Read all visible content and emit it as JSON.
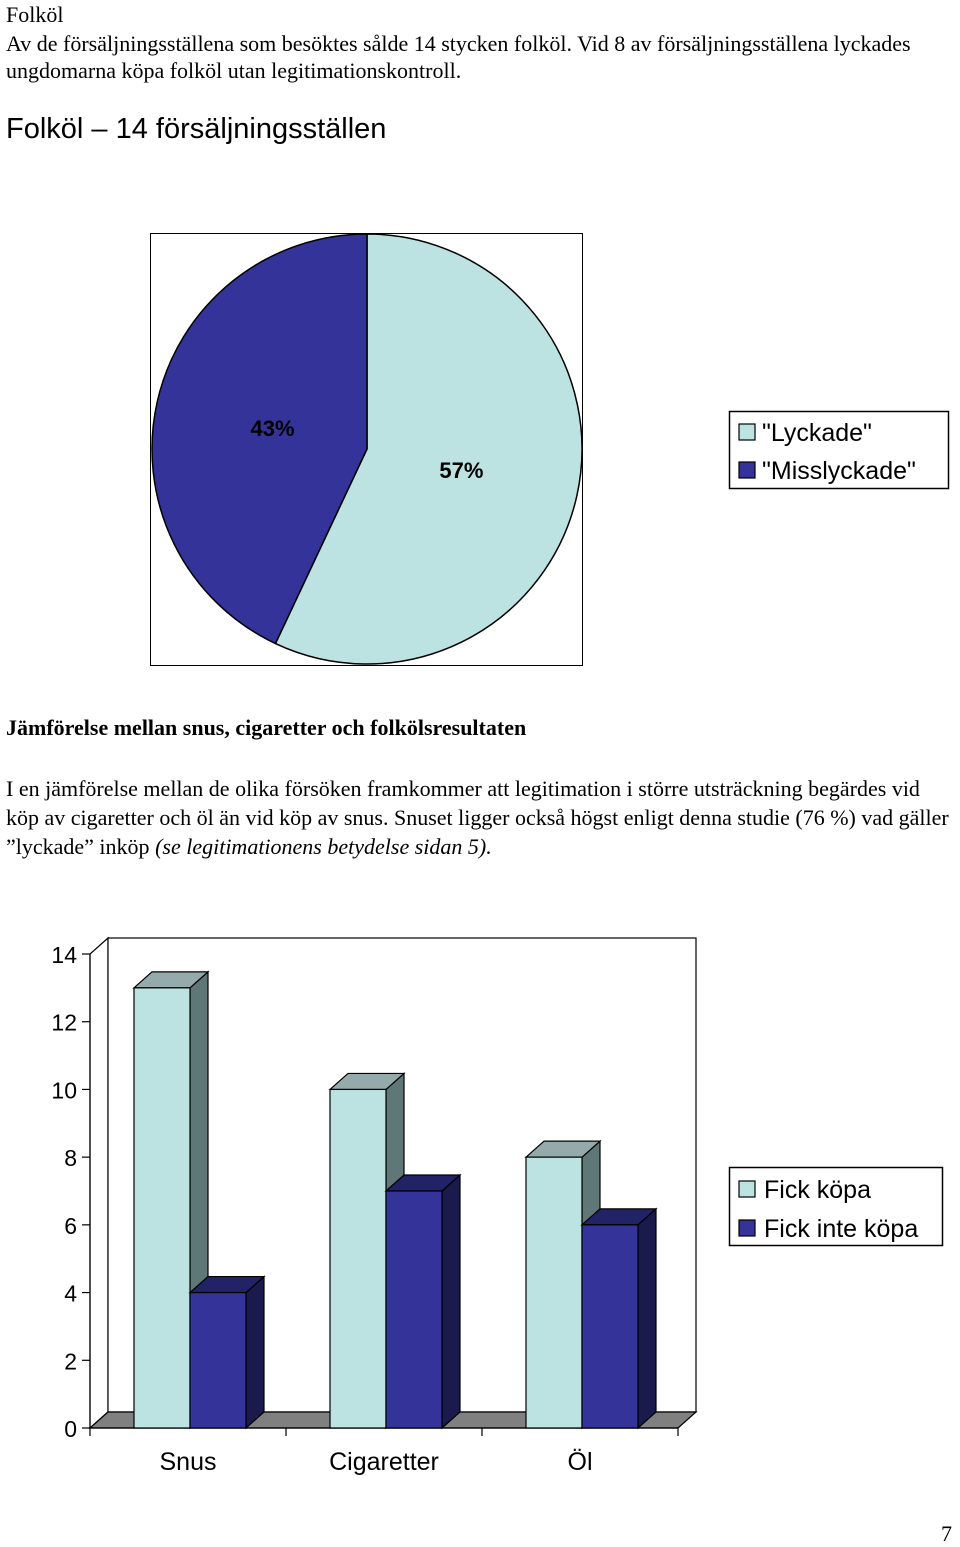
{
  "intro": {
    "heading": "Folköl",
    "text": "Av de försäljningsställena som besöktes sålde 14 stycken folköl. Vid 8 av försäljningsställena lyckades ungdomarna köpa folköl utan legitimationskontroll."
  },
  "colors": {
    "light": "#BCE2E2",
    "dark": "#333399",
    "light_side": "#5F7777",
    "light_top": "#95ABAB",
    "dark_side": "#1A1A4D",
    "dark_top": "#222266",
    "floor": "#808080"
  },
  "section": {
    "heading": "Jämförelse mellan snus, cigaretter och folkölsresultaten",
    "text_plain": "I en jämförelse mellan de olika försöken framkommer att legitimation i större utsträckning begärdes vid köp av cigaretter och öl än vid köp av snus. Snuset ligger också högst enligt denna studie (76 %) vad gäller ”lyckade” inköp ",
    "text_italic": "(se legitimationens betydelse sidan 5)."
  },
  "page_number": "7",
  "chart_data": [
    {
      "type": "pie",
      "title": "Folköl – 14 försäljningsställen",
      "slices": [
        {
          "label": "\"Lyckade\"",
          "value": 57,
          "data_label": "57%",
          "color": "#BCE2E2"
        },
        {
          "label": "\"Misslyckade\"",
          "value": 43,
          "data_label": "43%",
          "color": "#333399"
        }
      ],
      "legend": [
        "\"Lyckade\"",
        "\"Misslyckade\""
      ],
      "legend_position": "right"
    },
    {
      "type": "bar",
      "style": "3d-clustered",
      "categories": [
        "Snus",
        "Cigaretter",
        "Öl"
      ],
      "series": [
        {
          "name": "Fick köpa",
          "values": [
            13,
            10,
            8
          ],
          "color": "#BCE2E2"
        },
        {
          "name": "Fick inte köpa",
          "values": [
            4,
            7,
            6
          ],
          "color": "#333399"
        }
      ],
      "ylim": [
        0,
        14
      ],
      "yticks": [
        "0",
        "2",
        "4",
        "6",
        "8",
        "10",
        "12",
        "14"
      ],
      "legend_position": "right",
      "grid": false
    }
  ]
}
